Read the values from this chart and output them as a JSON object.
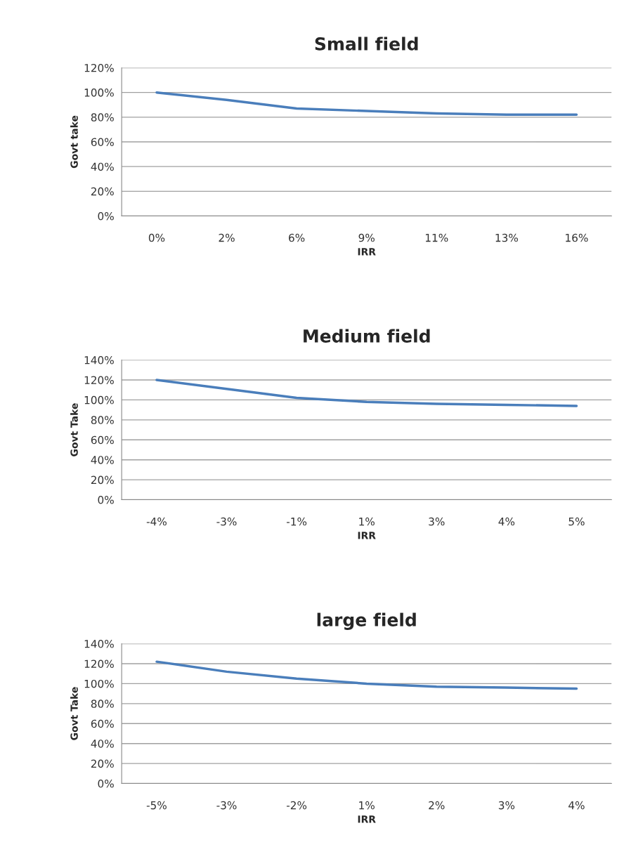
{
  "chart_data": [
    {
      "type": "line",
      "title": "Small field",
      "xlabel": "IRR",
      "ylabel": "Govt take",
      "categories": [
        "0%",
        "2%",
        "6%",
        "9%",
        "11%",
        "13%",
        "16%"
      ],
      "series": [
        {
          "color": "#4a7ebb",
          "values": [
            100,
            94,
            87,
            85,
            83,
            82,
            82
          ]
        }
      ],
      "ylim": [
        0,
        120
      ],
      "yticks": [
        {
          "value": 0,
          "label": "0%"
        },
        {
          "value": 20,
          "label": "20%"
        },
        {
          "value": 40,
          "label": "40%"
        },
        {
          "value": 60,
          "label": "60%"
        },
        {
          "value": 80,
          "label": "80%"
        },
        {
          "value": 100,
          "label": "100%"
        },
        {
          "value": 120,
          "label": "120%"
        }
      ],
      "grid": "y"
    },
    {
      "type": "line",
      "title": "Medium field",
      "xlabel": "IRR",
      "ylabel": "Govt Take",
      "categories": [
        "-4%",
        "-3%",
        "-1%",
        "1%",
        "3%",
        "4%",
        "5%"
      ],
      "series": [
        {
          "color": "#4a7ebb",
          "values": [
            120,
            111,
            102,
            98,
            96,
            95,
            94
          ]
        }
      ],
      "ylim": [
        0,
        140
      ],
      "yticks": [
        {
          "value": 0,
          "label": "0%"
        },
        {
          "value": 20,
          "label": "20%"
        },
        {
          "value": 40,
          "label": "40%"
        },
        {
          "value": 60,
          "label": "60%"
        },
        {
          "value": 80,
          "label": "80%"
        },
        {
          "value": 100,
          "label": "100%"
        },
        {
          "value": 120,
          "label": "120%"
        },
        {
          "value": 140,
          "label": "140%"
        }
      ],
      "grid": "y"
    },
    {
      "type": "line",
      "title": "large field",
      "xlabel": "IRR",
      "ylabel": "Govt Take",
      "categories": [
        "-5%",
        "-3%",
        "-2%",
        "1%",
        "2%",
        "3%",
        "4%"
      ],
      "series": [
        {
          "color": "#4a7ebb",
          "values": [
            122,
            112,
            105,
            100,
            97,
            96,
            95
          ]
        }
      ],
      "ylim": [
        0,
        140
      ],
      "yticks": [
        {
          "value": 0,
          "label": "0%"
        },
        {
          "value": 20,
          "label": "20%"
        },
        {
          "value": 40,
          "label": "40%"
        },
        {
          "value": 60,
          "label": "60%"
        },
        {
          "value": 80,
          "label": "80%"
        },
        {
          "value": 100,
          "label": "100%"
        },
        {
          "value": 120,
          "label": "120%"
        },
        {
          "value": 140,
          "label": "140%"
        }
      ],
      "grid": "y"
    }
  ]
}
